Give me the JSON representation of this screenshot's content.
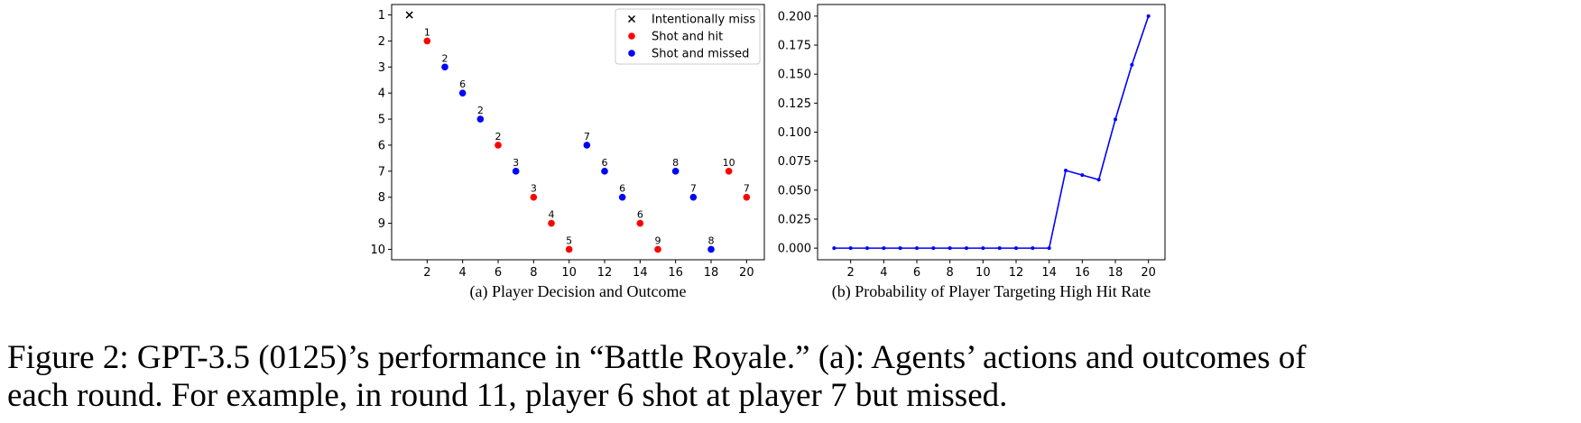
{
  "chart_data": [
    {
      "type": "scatter",
      "subcaption": "(a) Player Decision and Outcome",
      "xlim": [
        0,
        21
      ],
      "ylim": [
        10.4,
        0.6
      ],
      "y_inverted": true,
      "xticks": [
        2,
        4,
        6,
        8,
        10,
        12,
        14,
        16,
        18,
        20
      ],
      "yticks": [
        1,
        2,
        3,
        4,
        5,
        6,
        7,
        8,
        9,
        10
      ],
      "grid": false,
      "legend_position": "top-right",
      "series": [
        {
          "name": "Intentionally miss",
          "color": "#000000",
          "marker": "x",
          "points": [
            {
              "x": 1,
              "y": 1
            }
          ]
        },
        {
          "name": "Shot and hit",
          "color": "#ff0000",
          "marker": "o",
          "points": [
            {
              "x": 2,
              "y": 2,
              "label": "1"
            },
            {
              "x": 6,
              "y": 6,
              "label": "2"
            },
            {
              "x": 8,
              "y": 8,
              "label": "3"
            },
            {
              "x": 9,
              "y": 9,
              "label": "4"
            },
            {
              "x": 10,
              "y": 10,
              "label": "5"
            },
            {
              "x": 14,
              "y": 9,
              "label": "6"
            },
            {
              "x": 15,
              "y": 10,
              "label": "9"
            },
            {
              "x": 19,
              "y": 7,
              "label": "10"
            },
            {
              "x": 20,
              "y": 8,
              "label": "7"
            }
          ]
        },
        {
          "name": "Shot and missed",
          "color": "#0000ff",
          "marker": "o",
          "points": [
            {
              "x": 3,
              "y": 3,
              "label": "2"
            },
            {
              "x": 4,
              "y": 4,
              "label": "6"
            },
            {
              "x": 5,
              "y": 5,
              "label": "2"
            },
            {
              "x": 7,
              "y": 7,
              "label": "3"
            },
            {
              "x": 11,
              "y": 6,
              "label": "7"
            },
            {
              "x": 12,
              "y": 7,
              "label": "6"
            },
            {
              "x": 13,
              "y": 8,
              "label": "6"
            },
            {
              "x": 16,
              "y": 7,
              "label": "8"
            },
            {
              "x": 17,
              "y": 8,
              "label": "7"
            },
            {
              "x": 18,
              "y": 10,
              "label": "8"
            }
          ]
        }
      ]
    },
    {
      "type": "line",
      "subcaption": "(b) Probability of Player Targeting High Hit Rate",
      "xlim": [
        0,
        21
      ],
      "ylim": [
        -0.01,
        0.21
      ],
      "xticks": [
        2,
        4,
        6,
        8,
        10,
        12,
        14,
        16,
        18,
        20
      ],
      "yticks": [
        0.0,
        0.025,
        0.05,
        0.075,
        0.1,
        0.125,
        0.15,
        0.175,
        0.2
      ],
      "ytick_labels": [
        "0.000",
        "0.025",
        "0.050",
        "0.075",
        "0.100",
        "0.125",
        "0.150",
        "0.175",
        "0.200"
      ],
      "grid": false,
      "series": [
        {
          "color": "#0000ff",
          "x": [
            1,
            2,
            3,
            4,
            5,
            6,
            7,
            8,
            9,
            10,
            11,
            12,
            13,
            14,
            15,
            16,
            17,
            18,
            19,
            20
          ],
          "y": [
            0,
            0,
            0,
            0,
            0,
            0,
            0,
            0,
            0,
            0,
            0,
            0,
            0,
            0,
            0.067,
            0.063,
            0.059,
            0.111,
            0.158,
            0.2
          ]
        }
      ]
    }
  ],
  "caption": {
    "line1": "Figure 2: GPT-3.5 (0125)’s performance in “Battle Royale.” (a): Agents’ actions and outcomes of",
    "line2": "each round. For example, in round 11, player 6 shot at player 7 but missed."
  }
}
